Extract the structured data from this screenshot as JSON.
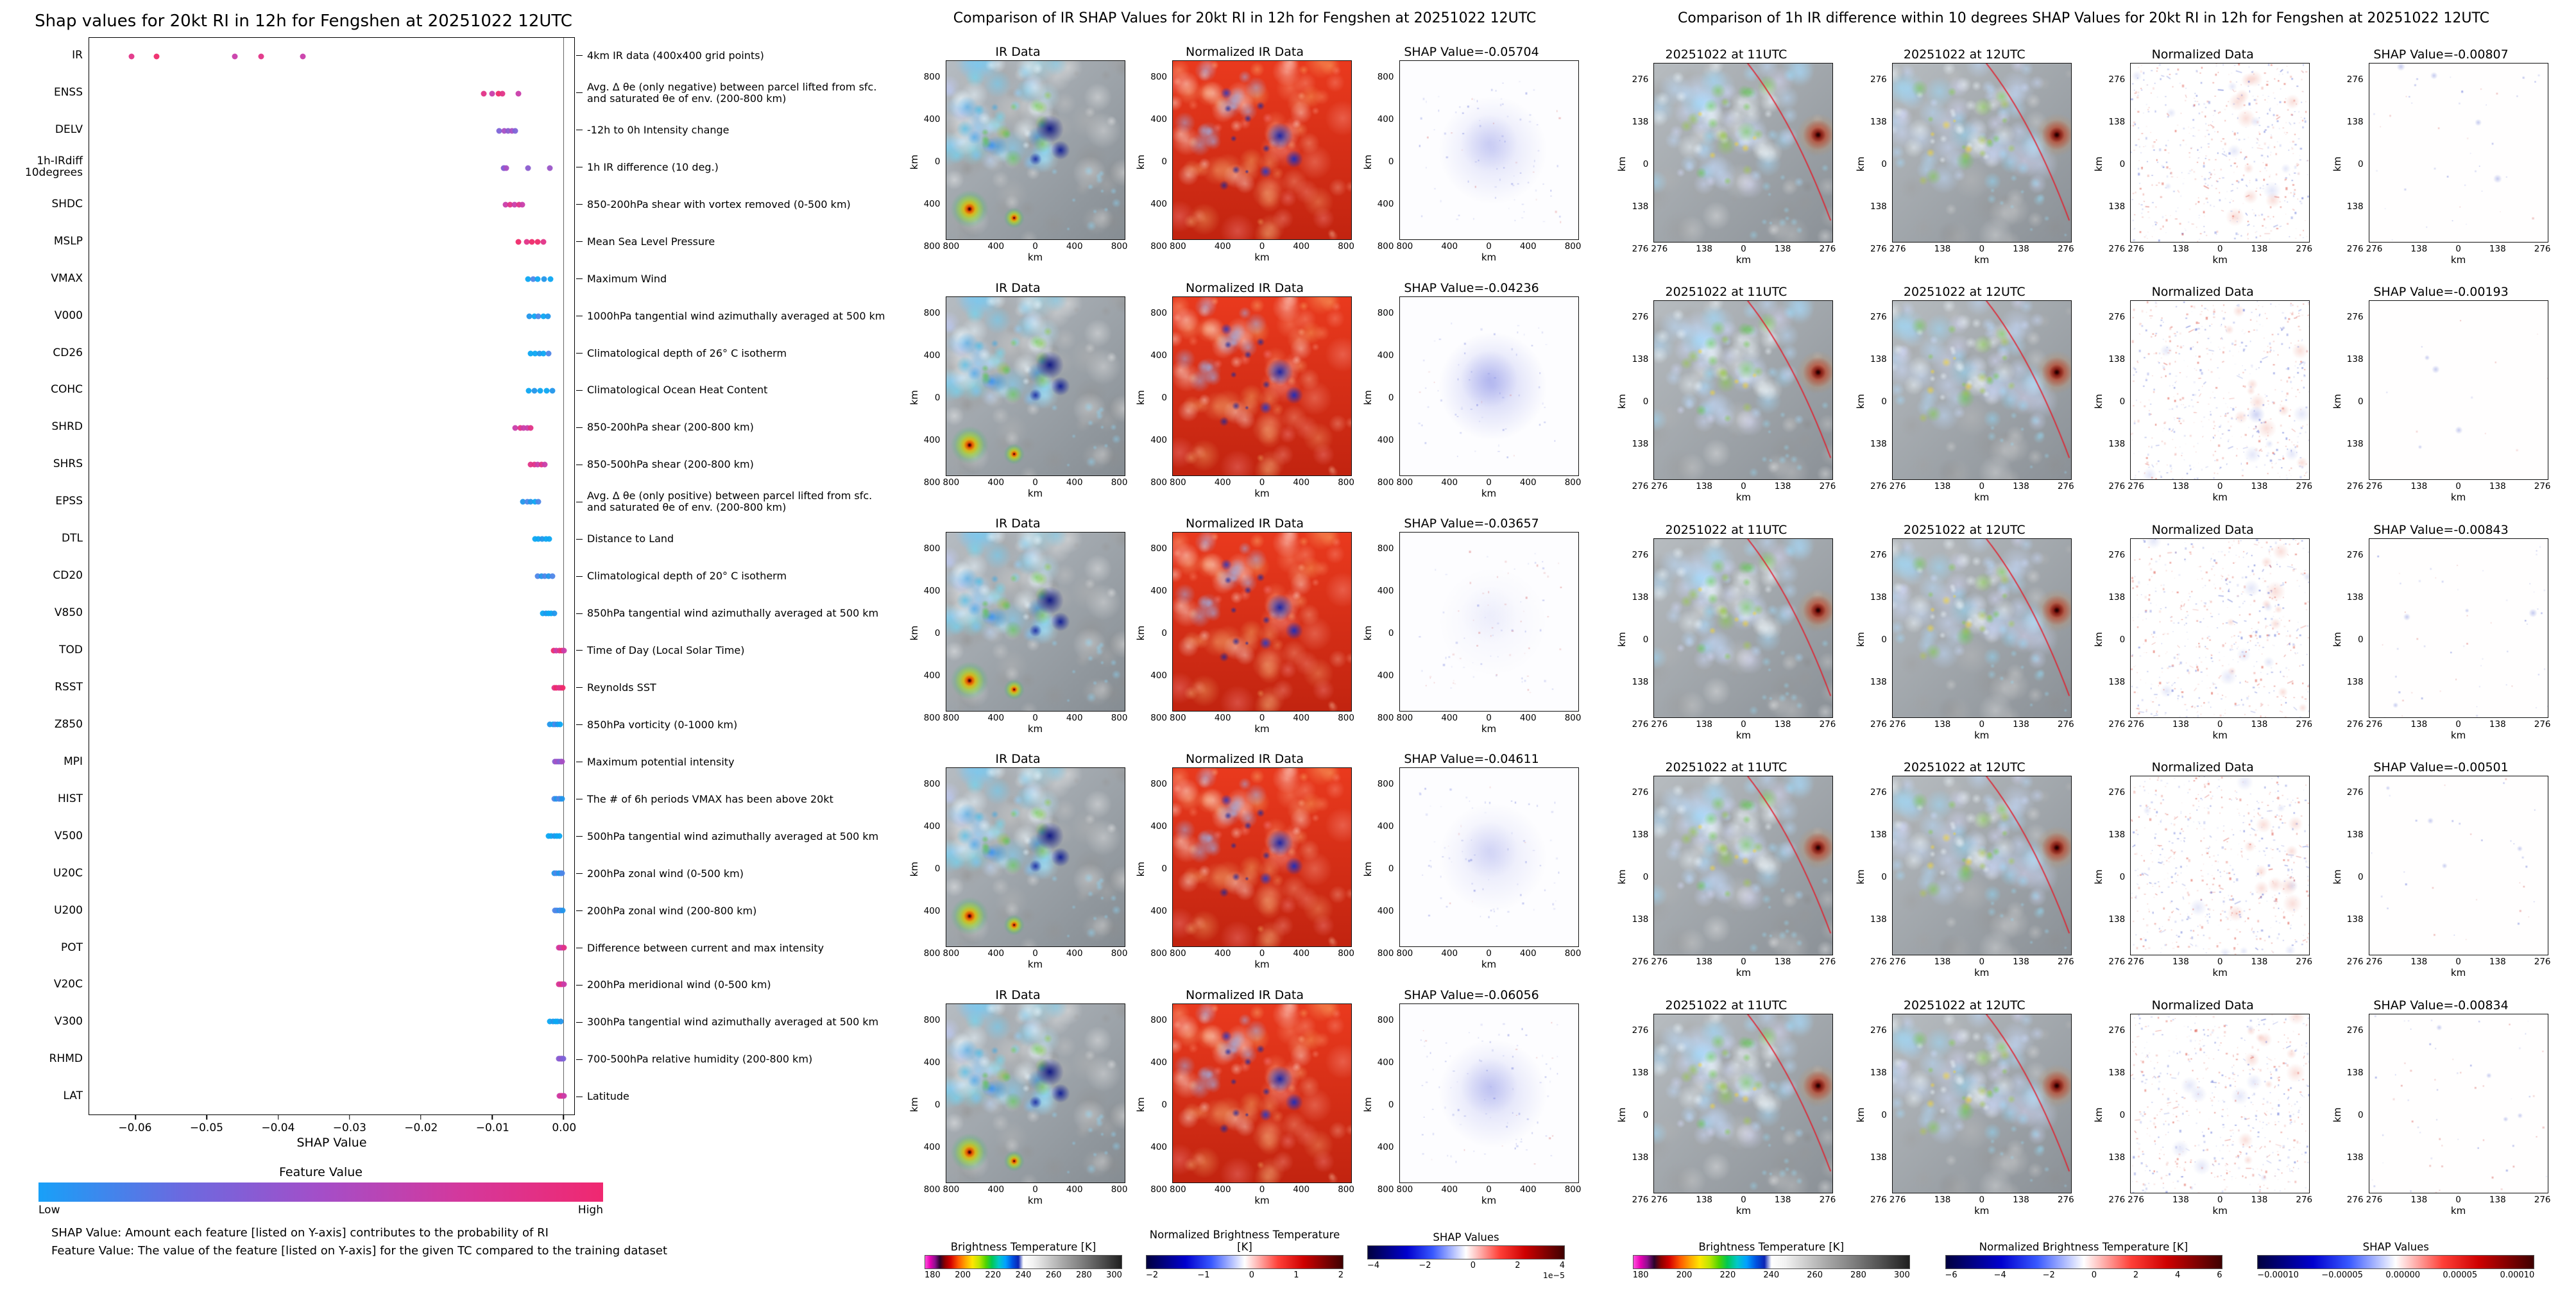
{
  "chart_data": [
    {
      "type": "scatter",
      "title": "Shap values for 20kt RI in 12h for Fengshen at 20251022 12UTC",
      "xlabel": "SHAP Value",
      "xlim": [
        -0.0665,
        0.0015
      ],
      "x_ticks": [
        "−0.06",
        "−0.05",
        "−0.04",
        "−0.03",
        "−0.02",
        "−0.01",
        "0.00"
      ],
      "x_tick_values": [
        -0.06,
        -0.05,
        -0.04,
        -0.03,
        -0.02,
        -0.01,
        0.0
      ],
      "grid": false,
      "colorbar": {
        "title": "Feature Value",
        "low_label": "Low",
        "high_label": "High",
        "gradient": [
          "#18a0f8",
          "#6a6ae0",
          "#a44ec8",
          "#d4389c",
          "#f02870"
        ]
      },
      "footnotes": [
        "SHAP Value: Amount each feature [listed on Y-axis] contributes to the probability of RI",
        "Feature Value: The value of the feature [listed on Y-axis] for the given TC compared to the training dataset"
      ],
      "features": [
        {
          "name": "IR",
          "desc": "4km IR data (400x400 grid points)",
          "values": [
            -0.06056,
            -0.05704,
            -0.04611,
            -0.04236,
            -0.03657
          ],
          "colors": [
            "#e23387",
            "#ef2a6a",
            "#c93daa",
            "#e23387",
            "#c93daa"
          ]
        },
        {
          "name": "ENSS",
          "desc": "Avg. Δ θe (only negative) between parcel lifted from sfc. and saturated θe of env. (200-800 km)",
          "values": [
            -0.0112,
            -0.01,
            -0.0091,
            -0.0086,
            -0.0063
          ],
          "colors": [
            "#e23387",
            "#c93daa",
            "#ef2a6a",
            "#e23387",
            "#c93daa"
          ]
        },
        {
          "name": "DELV",
          "desc": "-12h to 0h Intensity change",
          "values": [
            -0.009,
            -0.0083,
            -0.0078,
            -0.0072,
            -0.0068
          ],
          "colors": [
            "#7e64d8",
            "#a84fc4",
            "#8a5ccf",
            "#a84fc4",
            "#7e64d8"
          ]
        },
        {
          "name": "1h-IRdiff\n10degrees",
          "desc": "1h IR difference (10 deg.)",
          "values": [
            -0.00843,
            -0.00834,
            -0.00807,
            -0.00501,
            -0.00193
          ],
          "colors": [
            "#9a55c8",
            "#7e64d8",
            "#a84fc4",
            "#8a5ccf",
            "#9a55c8"
          ]
        },
        {
          "name": "SHDC",
          "desc": "850-200hPa shear with vortex removed (0-500 km)",
          "values": [
            -0.0081,
            -0.0075,
            -0.0069,
            -0.0062,
            -0.0058
          ],
          "colors": [
            "#c93daa",
            "#e23387",
            "#c93daa",
            "#e23387",
            "#c93daa"
          ]
        },
        {
          "name": "MSLP",
          "desc": "Mean Sea Level Pressure",
          "values": [
            -0.0063,
            -0.0052,
            -0.0044,
            -0.0036,
            -0.0028
          ],
          "colors": [
            "#ef2a6a",
            "#e23387",
            "#ef2a6a",
            "#ef2a6a",
            "#e23387"
          ]
        },
        {
          "name": "VMAX",
          "desc": "Maximum Wind",
          "values": [
            -0.005,
            -0.0043,
            -0.0036,
            -0.0027,
            -0.0018
          ],
          "colors": [
            "#0ca6f2",
            "#4e86e8",
            "#0ca6f2",
            "#2196eb",
            "#0ca6f2"
          ]
        },
        {
          "name": "V000",
          "desc": "1000hPa tangential wind azimuthally averaged at 500 km",
          "values": [
            -0.0048,
            -0.0041,
            -0.0035,
            -0.0028,
            -0.0022
          ],
          "colors": [
            "#2196eb",
            "#0ca6f2",
            "#4e86e8",
            "#0ca6f2",
            "#2196eb"
          ]
        },
        {
          "name": "CD26",
          "desc": "Climatological depth of 26° C isotherm",
          "values": [
            -0.0046,
            -0.004,
            -0.0034,
            -0.0028,
            -0.0021
          ],
          "colors": [
            "#0ca6f2",
            "#0ca6f2",
            "#2196eb",
            "#0ca6f2",
            "#4e86e8"
          ]
        },
        {
          "name": "COHC",
          "desc": "Climatological Ocean Heat Content",
          "values": [
            -0.0049,
            -0.0041,
            -0.0033,
            -0.0024,
            -0.0016
          ],
          "colors": [
            "#0ca6f2",
            "#2196eb",
            "#0ca6f2",
            "#0ca6f2",
            "#2196eb"
          ]
        },
        {
          "name": "SHRD",
          "desc": "850-200hPa shear (200-800 km)",
          "values": [
            -0.0068,
            -0.0061,
            -0.0056,
            -0.0051,
            -0.0046
          ],
          "colors": [
            "#c93daa",
            "#e23387",
            "#c93daa",
            "#c93daa",
            "#e23387"
          ]
        },
        {
          "name": "SHRS",
          "desc": "850-500hPa shear (200-800 km)",
          "values": [
            -0.0046,
            -0.0041,
            -0.0036,
            -0.0031,
            -0.0026
          ],
          "colors": [
            "#e23387",
            "#e23387",
            "#c93daa",
            "#e23387",
            "#c93daa"
          ]
        },
        {
          "name": "EPSS",
          "desc": "Avg. Δ θe (only positive) between parcel lifted from sfc. and saturated θe of env. (200-800 km)",
          "values": [
            -0.0057,
            -0.0051,
            -0.0046,
            -0.004,
            -0.0035
          ],
          "colors": [
            "#2196eb",
            "#4e86e8",
            "#2196eb",
            "#0ca6f2",
            "#4e86e8"
          ]
        },
        {
          "name": "DTL",
          "desc": "Distance to Land",
          "values": [
            -0.004,
            -0.0035,
            -0.003,
            -0.0025,
            -0.002
          ],
          "colors": [
            "#0ca6f2",
            "#0ca6f2",
            "#2196eb",
            "#0ca6f2",
            "#0ca6f2"
          ]
        },
        {
          "name": "CD20",
          "desc": "Climatological depth of 20° C isotherm",
          "values": [
            -0.0036,
            -0.0031,
            -0.0026,
            -0.0021,
            -0.0016
          ],
          "colors": [
            "#4e86e8",
            "#2196eb",
            "#4e86e8",
            "#2196eb",
            "#4e86e8"
          ]
        },
        {
          "name": "V850",
          "desc": "850hPa tangential wind azimuthally averaged at 500 km",
          "values": [
            -0.0029,
            -0.0025,
            -0.0021,
            -0.0017,
            -0.0013
          ],
          "colors": [
            "#0ca6f2",
            "#2196eb",
            "#0ca6f2",
            "#0ca6f2",
            "#2196eb"
          ]
        },
        {
          "name": "TOD",
          "desc": "Time of Day (Local Solar Time)",
          "values": [
            -0.0014,
            -0.001,
            -0.0006,
            -0.0002,
            0.0001
          ],
          "colors": [
            "#ef2a6a",
            "#c93daa",
            "#e23387",
            "#ef2a6a",
            "#c93daa"
          ]
        },
        {
          "name": "RSST",
          "desc": "Reynolds SST",
          "values": [
            -0.0013,
            -0.001,
            -0.0007,
            -0.0004,
            -0.0001
          ],
          "colors": [
            "#e23387",
            "#ef2a6a",
            "#e23387",
            "#e23387",
            "#ef2a6a"
          ]
        },
        {
          "name": "Z850",
          "desc": "850hPa vorticity (0-1000 km)",
          "values": [
            -0.0019,
            -0.0015,
            -0.0012,
            -0.0008,
            -0.0005
          ],
          "colors": [
            "#2196eb",
            "#0ca6f2",
            "#4e86e8",
            "#2196eb",
            "#0ca6f2"
          ]
        },
        {
          "name": "MPI",
          "desc": "Maximum potential intensity",
          "values": [
            -0.0012,
            -0.0009,
            -0.0007,
            -0.0004,
            -0.0002
          ],
          "colors": [
            "#8a5ccf",
            "#a84fc4",
            "#8a5ccf",
            "#7e64d8",
            "#a84fc4"
          ]
        },
        {
          "name": "HIST",
          "desc": "The # of 6h periods VMAX has been above 20kt",
          "values": [
            -0.0013,
            -0.001,
            -0.0007,
            -0.0005,
            -0.0002
          ],
          "colors": [
            "#4e86e8",
            "#2196eb",
            "#4e86e8",
            "#4e86e8",
            "#2196eb"
          ]
        },
        {
          "name": "V500",
          "desc": "500hPa tangential wind azimuthally averaged at 500 km",
          "values": [
            -0.0021,
            -0.0017,
            -0.0013,
            -0.0009,
            -0.0006
          ],
          "colors": [
            "#0ca6f2",
            "#0ca6f2",
            "#2196eb",
            "#0ca6f2",
            "#0ca6f2"
          ]
        },
        {
          "name": "U20C",
          "desc": "200hPa zonal wind (0-500 km)",
          "values": [
            -0.0013,
            -0.001,
            -0.0007,
            -0.0004,
            -0.0002
          ],
          "colors": [
            "#2196eb",
            "#4e86e8",
            "#2196eb",
            "#2196eb",
            "#4e86e8"
          ]
        },
        {
          "name": "U200",
          "desc": "200hPa zonal wind (200-800 km)",
          "values": [
            -0.0012,
            -0.0009,
            -0.0006,
            -0.0004,
            -0.0001
          ],
          "colors": [
            "#4e86e8",
            "#4e86e8",
            "#2196eb",
            "#4e86e8",
            "#2196eb"
          ]
        },
        {
          "name": "POT",
          "desc": "Difference between current and max intensity",
          "values": [
            -0.0007,
            -0.0005,
            -0.0003,
            -0.0001,
            0.0001
          ],
          "colors": [
            "#c93daa",
            "#e23387",
            "#c93daa",
            "#c93daa",
            "#e23387"
          ]
        },
        {
          "name": "V20C",
          "desc": "200hPa meridional wind (0-500 km)",
          "values": [
            -0.0007,
            -0.0005,
            -0.0003,
            -0.0001,
            0.0001
          ],
          "colors": [
            "#e23387",
            "#c93daa",
            "#e23387",
            "#e23387",
            "#c93daa"
          ]
        },
        {
          "name": "V300",
          "desc": "300hPa tangential wind azimuthally averaged at 500 km",
          "values": [
            -0.0019,
            -0.0015,
            -0.0011,
            -0.0008,
            -0.0004
          ],
          "colors": [
            "#0ca6f2",
            "#2196eb",
            "#0ca6f2",
            "#0ca6f2",
            "#2196eb"
          ]
        },
        {
          "name": "RHMD",
          "desc": "700-500hPa relative humidity (200-800 km)",
          "values": [
            -0.0007,
            -0.0005,
            -0.0003,
            -0.0002,
            0.0
          ],
          "colors": [
            "#8a5ccf",
            "#7e64d8",
            "#a84fc4",
            "#8a5ccf",
            "#7e64d8"
          ]
        },
        {
          "name": "LAT",
          "desc": "Latitude",
          "values": [
            -0.0006,
            -0.0004,
            -0.0003,
            -0.0001,
            0.0001
          ],
          "colors": [
            "#c93daa",
            "#e23387",
            "#c93daa",
            "#e23387",
            "#c93daa"
          ]
        }
      ]
    },
    {
      "type": "heatmap-grid",
      "title": "Comparison of IR SHAP Values for 20kt RI in 12h for Fengshen at 20251022 12UTC",
      "axis_label": "km",
      "axis_ticks": [
        "800",
        "400",
        "0",
        "400",
        "800"
      ],
      "rows": [
        {
          "cols": [
            {
              "title": "IR Data",
              "type": "ir"
            },
            {
              "title": "Normalized IR Data",
              "type": "ir_norm"
            },
            {
              "title": "SHAP Value=-0.05704",
              "type": "shap_map"
            }
          ]
        },
        {
          "cols": [
            {
              "title": "IR Data",
              "type": "ir"
            },
            {
              "title": "Normalized IR Data",
              "type": "ir_norm"
            },
            {
              "title": "SHAP Value=-0.04236",
              "type": "shap_map"
            }
          ]
        },
        {
          "cols": [
            {
              "title": "IR Data",
              "type": "ir"
            },
            {
              "title": "Normalized IR Data",
              "type": "ir_norm"
            },
            {
              "title": "SHAP Value=-0.03657",
              "type": "shap_map"
            }
          ]
        },
        {
          "cols": [
            {
              "title": "IR Data",
              "type": "ir"
            },
            {
              "title": "Normalized IR Data",
              "type": "ir_norm"
            },
            {
              "title": "SHAP Value=-0.04611",
              "type": "shap_map"
            }
          ]
        },
        {
          "cols": [
            {
              "title": "IR Data",
              "type": "ir"
            },
            {
              "title": "Normalized IR Data",
              "type": "ir_norm"
            },
            {
              "title": "SHAP Value=-0.06056",
              "type": "shap_map"
            }
          ]
        }
      ],
      "colorbars": [
        {
          "title": "Brightness Temperature [K]",
          "ticks": [
            "180",
            "200",
            "220",
            "240",
            "260",
            "280",
            "300"
          ],
          "type": "ir_cmap"
        },
        {
          "title": "Normalized Brightness Temperature [K]",
          "ticks": [
            "−2",
            "−1",
            "0",
            "1",
            "2"
          ],
          "type": "seismic"
        },
        {
          "title": "SHAP Values",
          "ticks": [
            "−4",
            "−2",
            "0",
            "2",
            "4"
          ],
          "type": "seismic",
          "scale_note": "1e−5"
        }
      ]
    },
    {
      "type": "heatmap-grid",
      "title": "Comparison of 1h IR difference within 10 degrees SHAP Values for 20kt RI in 12h for Fengshen at 20251022 12UTC",
      "axis_label": "km",
      "axis_ticks": [
        "276",
        "138",
        "0",
        "138",
        "276"
      ],
      "rows": [
        {
          "cols": [
            {
              "title": "20251022 at 11UTC",
              "type": "irdiff"
            },
            {
              "title": "20251022 at 12UTC",
              "type": "irdiff"
            },
            {
              "title": "Normalized Data",
              "type": "norm_diff"
            },
            {
              "title": "SHAP Value=-0.00807",
              "type": "shap_tiny"
            }
          ]
        },
        {
          "cols": [
            {
              "title": "20251022 at 11UTC",
              "type": "irdiff"
            },
            {
              "title": "20251022 at 12UTC",
              "type": "irdiff"
            },
            {
              "title": "Normalized Data",
              "type": "norm_diff"
            },
            {
              "title": "SHAP Value=-0.00193",
              "type": "shap_tiny"
            }
          ]
        },
        {
          "cols": [
            {
              "title": "20251022 at 11UTC",
              "type": "irdiff"
            },
            {
              "title": "20251022 at 12UTC",
              "type": "irdiff"
            },
            {
              "title": "Normalized Data",
              "type": "norm_diff"
            },
            {
              "title": "SHAP Value=-0.00843",
              "type": "shap_tiny"
            }
          ]
        },
        {
          "cols": [
            {
              "title": "20251022 at 11UTC",
              "type": "irdiff"
            },
            {
              "title": "20251022 at 12UTC",
              "type": "irdiff"
            },
            {
              "title": "Normalized Data",
              "type": "norm_diff"
            },
            {
              "title": "SHAP Value=-0.00501",
              "type": "shap_tiny"
            }
          ]
        },
        {
          "cols": [
            {
              "title": "20251022 at 11UTC",
              "type": "irdiff"
            },
            {
              "title": "20251022 at 12UTC",
              "type": "irdiff"
            },
            {
              "title": "Normalized Data",
              "type": "norm_diff"
            },
            {
              "title": "SHAP Value=-0.00834",
              "type": "shap_tiny"
            }
          ]
        }
      ],
      "colorbars": [
        {
          "title": "Brightness Temperature [K]",
          "ticks": [
            "180",
            "200",
            "220",
            "240",
            "260",
            "280",
            "300"
          ],
          "type": "ir_cmap"
        },
        {
          "title": "Normalized Brightness Temperature [K]",
          "ticks": [
            "−6",
            "−4",
            "−2",
            "0",
            "2",
            "4",
            "6"
          ],
          "type": "seismic"
        },
        {
          "title": "SHAP Values",
          "ticks": [
            "−0.00010",
            "−0.00005",
            "0.00000",
            "0.00005",
            "0.00010"
          ],
          "type": "seismic"
        }
      ]
    }
  ]
}
